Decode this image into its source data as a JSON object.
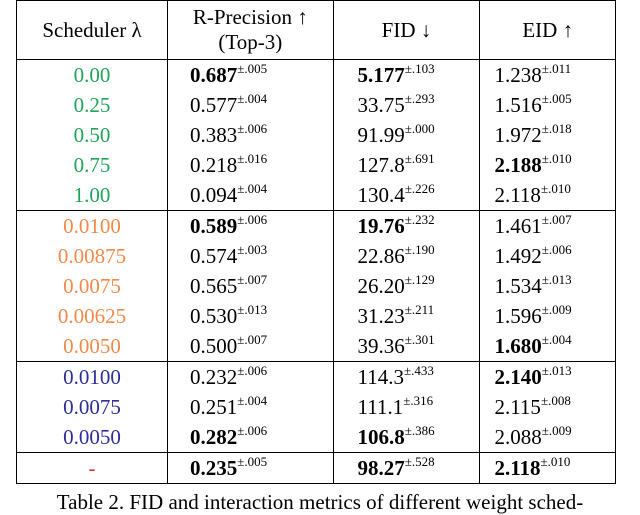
{
  "colors": {
    "green": "#22a45a",
    "orange": "#f08a4b",
    "blue": "#2e2e9a",
    "red": "#e03030"
  },
  "header": {
    "scheduler": "Scheduler λ",
    "rprec_line1": "R-Precision ↑",
    "rprec_line2": "(Top-3)",
    "fid": "FID ↓",
    "eid": "EID ↑"
  },
  "groups": [
    {
      "color": "green",
      "rows": [
        {
          "lambda": "0.00",
          "r": "0.687",
          "r_pm": "±.005",
          "r_bold": true,
          "fid": "5.177",
          "fid_pm": "±.103",
          "fid_bold": true,
          "eid": "1.238",
          "eid_pm": "±.011",
          "eid_bold": false
        },
        {
          "lambda": "0.25",
          "r": "0.577",
          "r_pm": "±.004",
          "r_bold": false,
          "fid": "33.75",
          "fid_pm": "±.293",
          "fid_bold": false,
          "eid": "1.516",
          "eid_pm": "±.005",
          "eid_bold": false
        },
        {
          "lambda": "0.50",
          "r": "0.383",
          "r_pm": "±.006",
          "r_bold": false,
          "fid": "91.99",
          "fid_pm": "±.000",
          "fid_bold": false,
          "eid": "1.972",
          "eid_pm": "±.018",
          "eid_bold": false
        },
        {
          "lambda": "0.75",
          "r": "0.218",
          "r_pm": "±.016",
          "r_bold": false,
          "fid": "127.8",
          "fid_pm": "±.691",
          "fid_bold": false,
          "eid": "2.188",
          "eid_pm": "±.010",
          "eid_bold": true
        },
        {
          "lambda": "1.00",
          "r": "0.094",
          "r_pm": "±.004",
          "r_bold": false,
          "fid": "130.4",
          "fid_pm": "±.226",
          "fid_bold": false,
          "eid": "2.118",
          "eid_pm": "±.010",
          "eid_bold": false
        }
      ]
    },
    {
      "color": "orange",
      "rows": [
        {
          "lambda": "0.0100",
          "r": "0.589",
          "r_pm": "±.006",
          "r_bold": true,
          "fid": "19.76",
          "fid_pm": "±.232",
          "fid_bold": true,
          "eid": "1.461",
          "eid_pm": "±.007",
          "eid_bold": false
        },
        {
          "lambda": "0.00875",
          "r": "0.574",
          "r_pm": "±.003",
          "r_bold": false,
          "fid": "22.86",
          "fid_pm": "±.190",
          "fid_bold": false,
          "eid": "1.492",
          "eid_pm": "±.006",
          "eid_bold": false
        },
        {
          "lambda": "0.0075",
          "r": "0.565",
          "r_pm": "±.007",
          "r_bold": false,
          "fid": "26.20",
          "fid_pm": "±.129",
          "fid_bold": false,
          "eid": "1.534",
          "eid_pm": "±.013",
          "eid_bold": false
        },
        {
          "lambda": "0.00625",
          "r": "0.530",
          "r_pm": "±.013",
          "r_bold": false,
          "fid": "31.23",
          "fid_pm": "±.211",
          "fid_bold": false,
          "eid": "1.596",
          "eid_pm": "±.009",
          "eid_bold": false
        },
        {
          "lambda": "0.0050",
          "r": "0.500",
          "r_pm": "±.007",
          "r_bold": false,
          "fid": "39.36",
          "fid_pm": "±.301",
          "fid_bold": false,
          "eid": "1.680",
          "eid_pm": "±.004",
          "eid_bold": true
        }
      ]
    },
    {
      "color": "blue",
      "rows": [
        {
          "lambda": "0.0100",
          "r": "0.232",
          "r_pm": "±.006",
          "r_bold": false,
          "fid": "114.3",
          "fid_pm": "±.433",
          "fid_bold": false,
          "eid": "2.140",
          "eid_pm": "±.013",
          "eid_bold": true
        },
        {
          "lambda": "0.0075",
          "r": "0.251",
          "r_pm": "±.004",
          "r_bold": false,
          "fid": "111.1",
          "fid_pm": "±.316",
          "fid_bold": false,
          "eid": "2.115",
          "eid_pm": "±.008",
          "eid_bold": false
        },
        {
          "lambda": "0.0050",
          "r": "0.282",
          "r_pm": "±.006",
          "r_bold": true,
          "fid": "106.8",
          "fid_pm": "±.386",
          "fid_bold": true,
          "eid": "2.088",
          "eid_pm": "±.009",
          "eid_bold": false
        }
      ]
    },
    {
      "color": "red",
      "rows": [
        {
          "lambda": "-",
          "r": "0.235",
          "r_pm": "±.005",
          "r_bold": true,
          "fid": "98.27",
          "fid_pm": "±.528",
          "fid_bold": true,
          "eid": "2.118",
          "eid_pm": "±.010",
          "eid_bold": true
        }
      ]
    }
  ],
  "caption": "Table 2. FID and interaction metrics of different weight sched-"
}
